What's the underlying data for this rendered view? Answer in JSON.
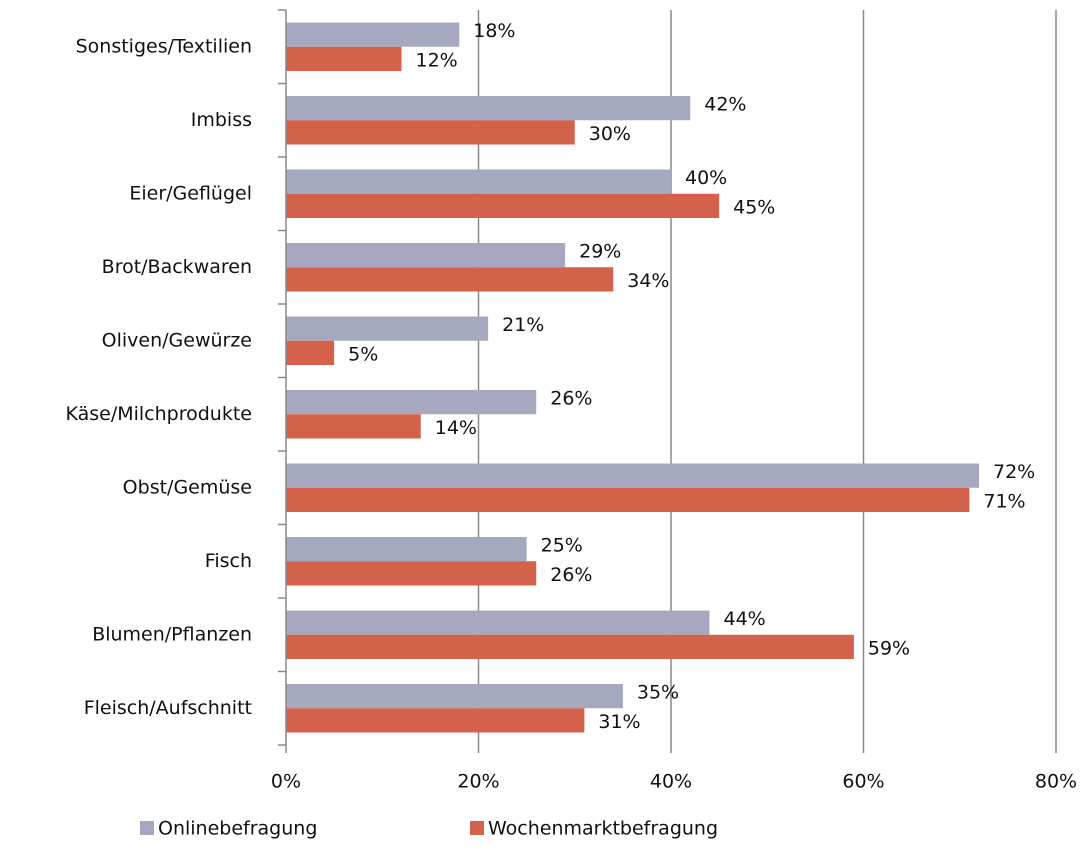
{
  "chart_data": {
    "type": "hbar",
    "categories": [
      "Sonstiges/Textilien",
      "Imbiss",
      "Eier/Geflügel",
      "Brot/Backwaren",
      "Oliven/Gewürze",
      "Käse/Milchprodukte",
      "Obst/Gemüse",
      "Fisch",
      "Blumen/Pflanzen",
      "Fleisch/Aufschnitt"
    ],
    "series": [
      {
        "name": "Onlinebefragung",
        "color": "#a5a8be",
        "values": [
          18,
          42,
          40,
          29,
          21,
          26,
          72,
          25,
          44,
          35
        ],
        "value_labels": [
          "18%",
          "42%",
          "40%",
          "29%",
          "21%",
          "26%",
          "72%",
          "25%",
          "44%",
          "35%"
        ]
      },
      {
        "name": "Wochenmarktbefragung",
        "color": "#d4624a",
        "values": [
          12,
          30,
          45,
          34,
          5,
          14,
          71,
          26,
          59,
          31
        ],
        "value_labels": [
          "12%",
          "30%",
          "45%",
          "34%",
          "5%",
          "14%",
          "71%",
          "26%",
          "59%",
          "31%"
        ]
      }
    ],
    "xlim": [
      0,
      80
    ],
    "xticks": [
      {
        "value": 0,
        "label": "0%"
      },
      {
        "value": 20,
        "label": "20%"
      },
      {
        "value": 40,
        "label": "40%"
      },
      {
        "value": 60,
        "label": "60%"
      },
      {
        "value": 80,
        "label": "80%"
      }
    ],
    "grid": true,
    "legend": "bottom"
  }
}
